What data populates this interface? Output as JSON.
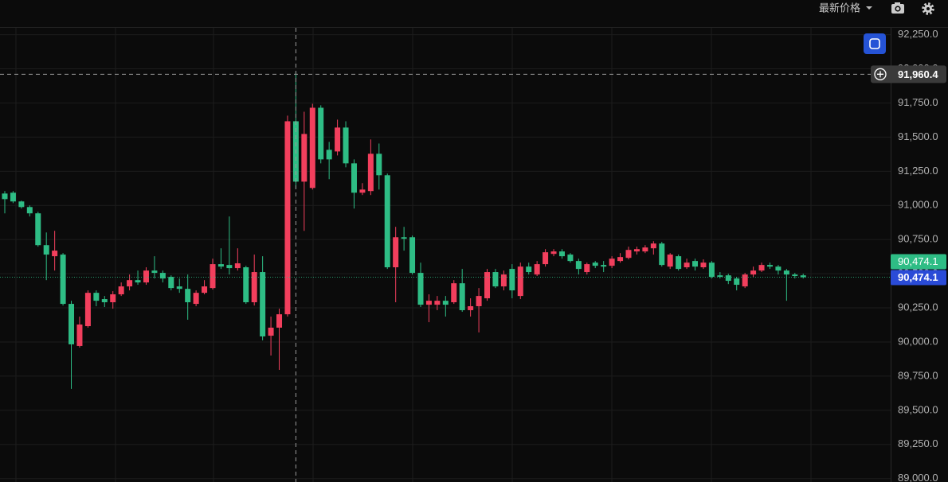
{
  "header": {
    "price_mode": "最新价格"
  },
  "chart_data": {
    "type": "candlestick",
    "up_color": "#f23f5d",
    "down_color": "#2ebd85",
    "ylim": [
      88975,
      92300
    ],
    "yticks": [
      {
        "value": 89000,
        "label": "89,000.0"
      },
      {
        "value": 89250,
        "label": "89,250.0"
      },
      {
        "value": 89500,
        "label": "89,500.0"
      },
      {
        "value": 89750,
        "label": "89,750.0"
      },
      {
        "value": 90000,
        "label": "90,000.0"
      },
      {
        "value": 90250,
        "label": "90,250.0"
      },
      {
        "value": 90500,
        "label": "90,500.0"
      },
      {
        "value": 90750,
        "label": "90,750.0"
      },
      {
        "value": 91000,
        "label": "91,000.0"
      },
      {
        "value": 91250,
        "label": "91,250.0"
      },
      {
        "value": 91500,
        "label": "91,500.0"
      },
      {
        "value": 91750,
        "label": "91,750.0"
      },
      {
        "value": 92000,
        "label": "92,000.0"
      },
      {
        "value": 92250,
        "label": "92,250.0"
      }
    ],
    "grid": true,
    "crosshair": {
      "index": 35,
      "value": 91960.4,
      "label": "91,960.4"
    },
    "last_price": {
      "value": 90474.1,
      "label": "90,474.1"
    },
    "candles": [
      [
        91087,
        91105,
        90942,
        91046
      ],
      [
        91093,
        91105,
        91017,
        91029
      ],
      [
        91029,
        91035,
        90977,
        90988
      ],
      [
        90988,
        91000,
        90919,
        90942
      ],
      [
        90942,
        90953,
        90698,
        90709
      ],
      [
        90709,
        90802,
        90453,
        90640
      ],
      [
        90628,
        90814,
        90523,
        90669
      ],
      [
        90640,
        90651,
        90267,
        90279
      ],
      [
        90279,
        90302,
        89657,
        89983
      ],
      [
        89971,
        90186,
        89959,
        90128
      ],
      [
        90116,
        90378,
        90105,
        90360
      ],
      [
        90360,
        90378,
        90262,
        90302
      ],
      [
        90314,
        90337,
        90256,
        90291
      ],
      [
        90291,
        90372,
        90244,
        90349
      ],
      [
        90349,
        90436,
        90337,
        90407
      ],
      [
        90407,
        90494,
        90378,
        90453
      ],
      [
        90453,
        90523,
        90419,
        90436
      ],
      [
        90436,
        90547,
        90419,
        90523
      ],
      [
        90523,
        90628,
        90465,
        90506
      ],
      [
        90506,
        90523,
        90436,
        90465
      ],
      [
        90477,
        90488,
        90378,
        90395
      ],
      [
        90407,
        90465,
        90360,
        90389
      ],
      [
        90389,
        90494,
        90163,
        90291
      ],
      [
        90279,
        90378,
        90262,
        90360
      ],
      [
        90360,
        90453,
        90349,
        90407
      ],
      [
        90395,
        90610,
        90384,
        90570
      ],
      [
        90570,
        90686,
        90535,
        90552
      ],
      [
        90564,
        90919,
        90494,
        90541
      ],
      [
        90541,
        90686,
        90523,
        90576
      ],
      [
        90547,
        90558,
        90279,
        90291
      ],
      [
        90291,
        90640,
        90267,
        90512
      ],
      [
        90512,
        90628,
        90012,
        90041
      ],
      [
        90046,
        90186,
        89901,
        90105
      ],
      [
        90105,
        90244,
        89796,
        90203
      ],
      [
        90203,
        91657,
        90186,
        91616
      ],
      [
        91616,
        91977,
        91122,
        91174
      ],
      [
        91174,
        91686,
        90814,
        91523
      ],
      [
        91128,
        91744,
        91116,
        91715
      ],
      [
        91715,
        91733,
        91308,
        91337
      ],
      [
        91407,
        91465,
        91192,
        91337
      ],
      [
        91395,
        91628,
        91366,
        91570
      ],
      [
        91570,
        91616,
        91279,
        91308
      ],
      [
        91308,
        91337,
        90977,
        91093
      ],
      [
        91093,
        91163,
        91076,
        91116
      ],
      [
        91105,
        91483,
        91076,
        91378
      ],
      [
        91378,
        91453,
        91116,
        91221
      ],
      [
        91221,
        91233,
        90535,
        90547
      ],
      [
        90547,
        90843,
        90291,
        90767
      ],
      [
        90767,
        90843,
        90669,
        90756
      ],
      [
        90767,
        90779,
        90494,
        90506
      ],
      [
        90506,
        90581,
        90256,
        90273
      ],
      [
        90273,
        90349,
        90145,
        90302
      ],
      [
        90273,
        90337,
        90233,
        90302
      ],
      [
        90302,
        90337,
        90186,
        90273
      ],
      [
        90291,
        90453,
        90279,
        90430
      ],
      [
        90430,
        90535,
        90221,
        90233
      ],
      [
        90233,
        90320,
        90186,
        90262
      ],
      [
        90262,
        90395,
        90070,
        90337
      ],
      [
        90320,
        90535,
        90302,
        90512
      ],
      [
        90512,
        90535,
        90395,
        90407
      ],
      [
        90407,
        90523,
        90378,
        90494
      ],
      [
        90535,
        90570,
        90320,
        90378
      ],
      [
        90337,
        90581,
        90314,
        90552
      ],
      [
        90552,
        90581,
        90494,
        90512
      ],
      [
        90494,
        90593,
        90483,
        90570
      ],
      [
        90570,
        90680,
        90552,
        90657
      ],
      [
        90645,
        90680,
        90628,
        90663
      ],
      [
        90663,
        90680,
        90610,
        90628
      ],
      [
        90640,
        90651,
        90581,
        90593
      ],
      [
        90593,
        90610,
        90494,
        90535
      ],
      [
        90512,
        90581,
        90494,
        90570
      ],
      [
        90581,
        90593,
        90541,
        90558
      ],
      [
        90564,
        90593,
        90512,
        90552
      ],
      [
        90558,
        90628,
        90541,
        90610
      ],
      [
        90593,
        90651,
        90581,
        90622
      ],
      [
        90616,
        90698,
        90605,
        90674
      ],
      [
        90663,
        90698,
        90640,
        90680
      ],
      [
        90663,
        90709,
        90651,
        90692
      ],
      [
        90686,
        90738,
        90640,
        90721
      ],
      [
        90721,
        90733,
        90552,
        90564
      ],
      [
        90552,
        90651,
        90535,
        90640
      ],
      [
        90628,
        90640,
        90523,
        90535
      ],
      [
        90547,
        90610,
        90535,
        90581
      ],
      [
        90593,
        90610,
        90523,
        90552
      ],
      [
        90547,
        90605,
        90535,
        90581
      ],
      [
        90581,
        90593,
        90465,
        90477
      ],
      [
        90488,
        90512,
        90465,
        90477
      ],
      [
        90488,
        90500,
        90424,
        90448
      ],
      [
        90465,
        90477,
        90378,
        90419
      ],
      [
        90407,
        90506,
        90395,
        90494
      ],
      [
        90494,
        90552,
        90477,
        90523
      ],
      [
        90523,
        90581,
        90512,
        90564
      ],
      [
        90564,
        90581,
        90535,
        90552
      ],
      [
        90552,
        90564,
        90494,
        90523
      ],
      [
        90523,
        90535,
        90302,
        90494
      ],
      [
        90494,
        90506,
        90465,
        90483
      ],
      [
        90488,
        90500,
        90465,
        90474.1
      ]
    ]
  }
}
